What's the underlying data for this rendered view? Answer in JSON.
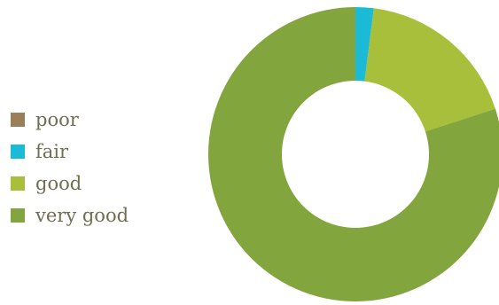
{
  "chart_data": {
    "type": "pie",
    "style": "donut",
    "categories": [
      "poor",
      "fair",
      "good",
      "very good"
    ],
    "values": [
      0,
      2,
      18,
      80
    ],
    "unit": "%",
    "colors": [
      "#9b7f5a",
      "#1bbad6",
      "#a7bf3a",
      "#82a53d"
    ],
    "legend_position": "left",
    "title": "",
    "start_angle_deg": 0,
    "direction": "clockwise"
  }
}
